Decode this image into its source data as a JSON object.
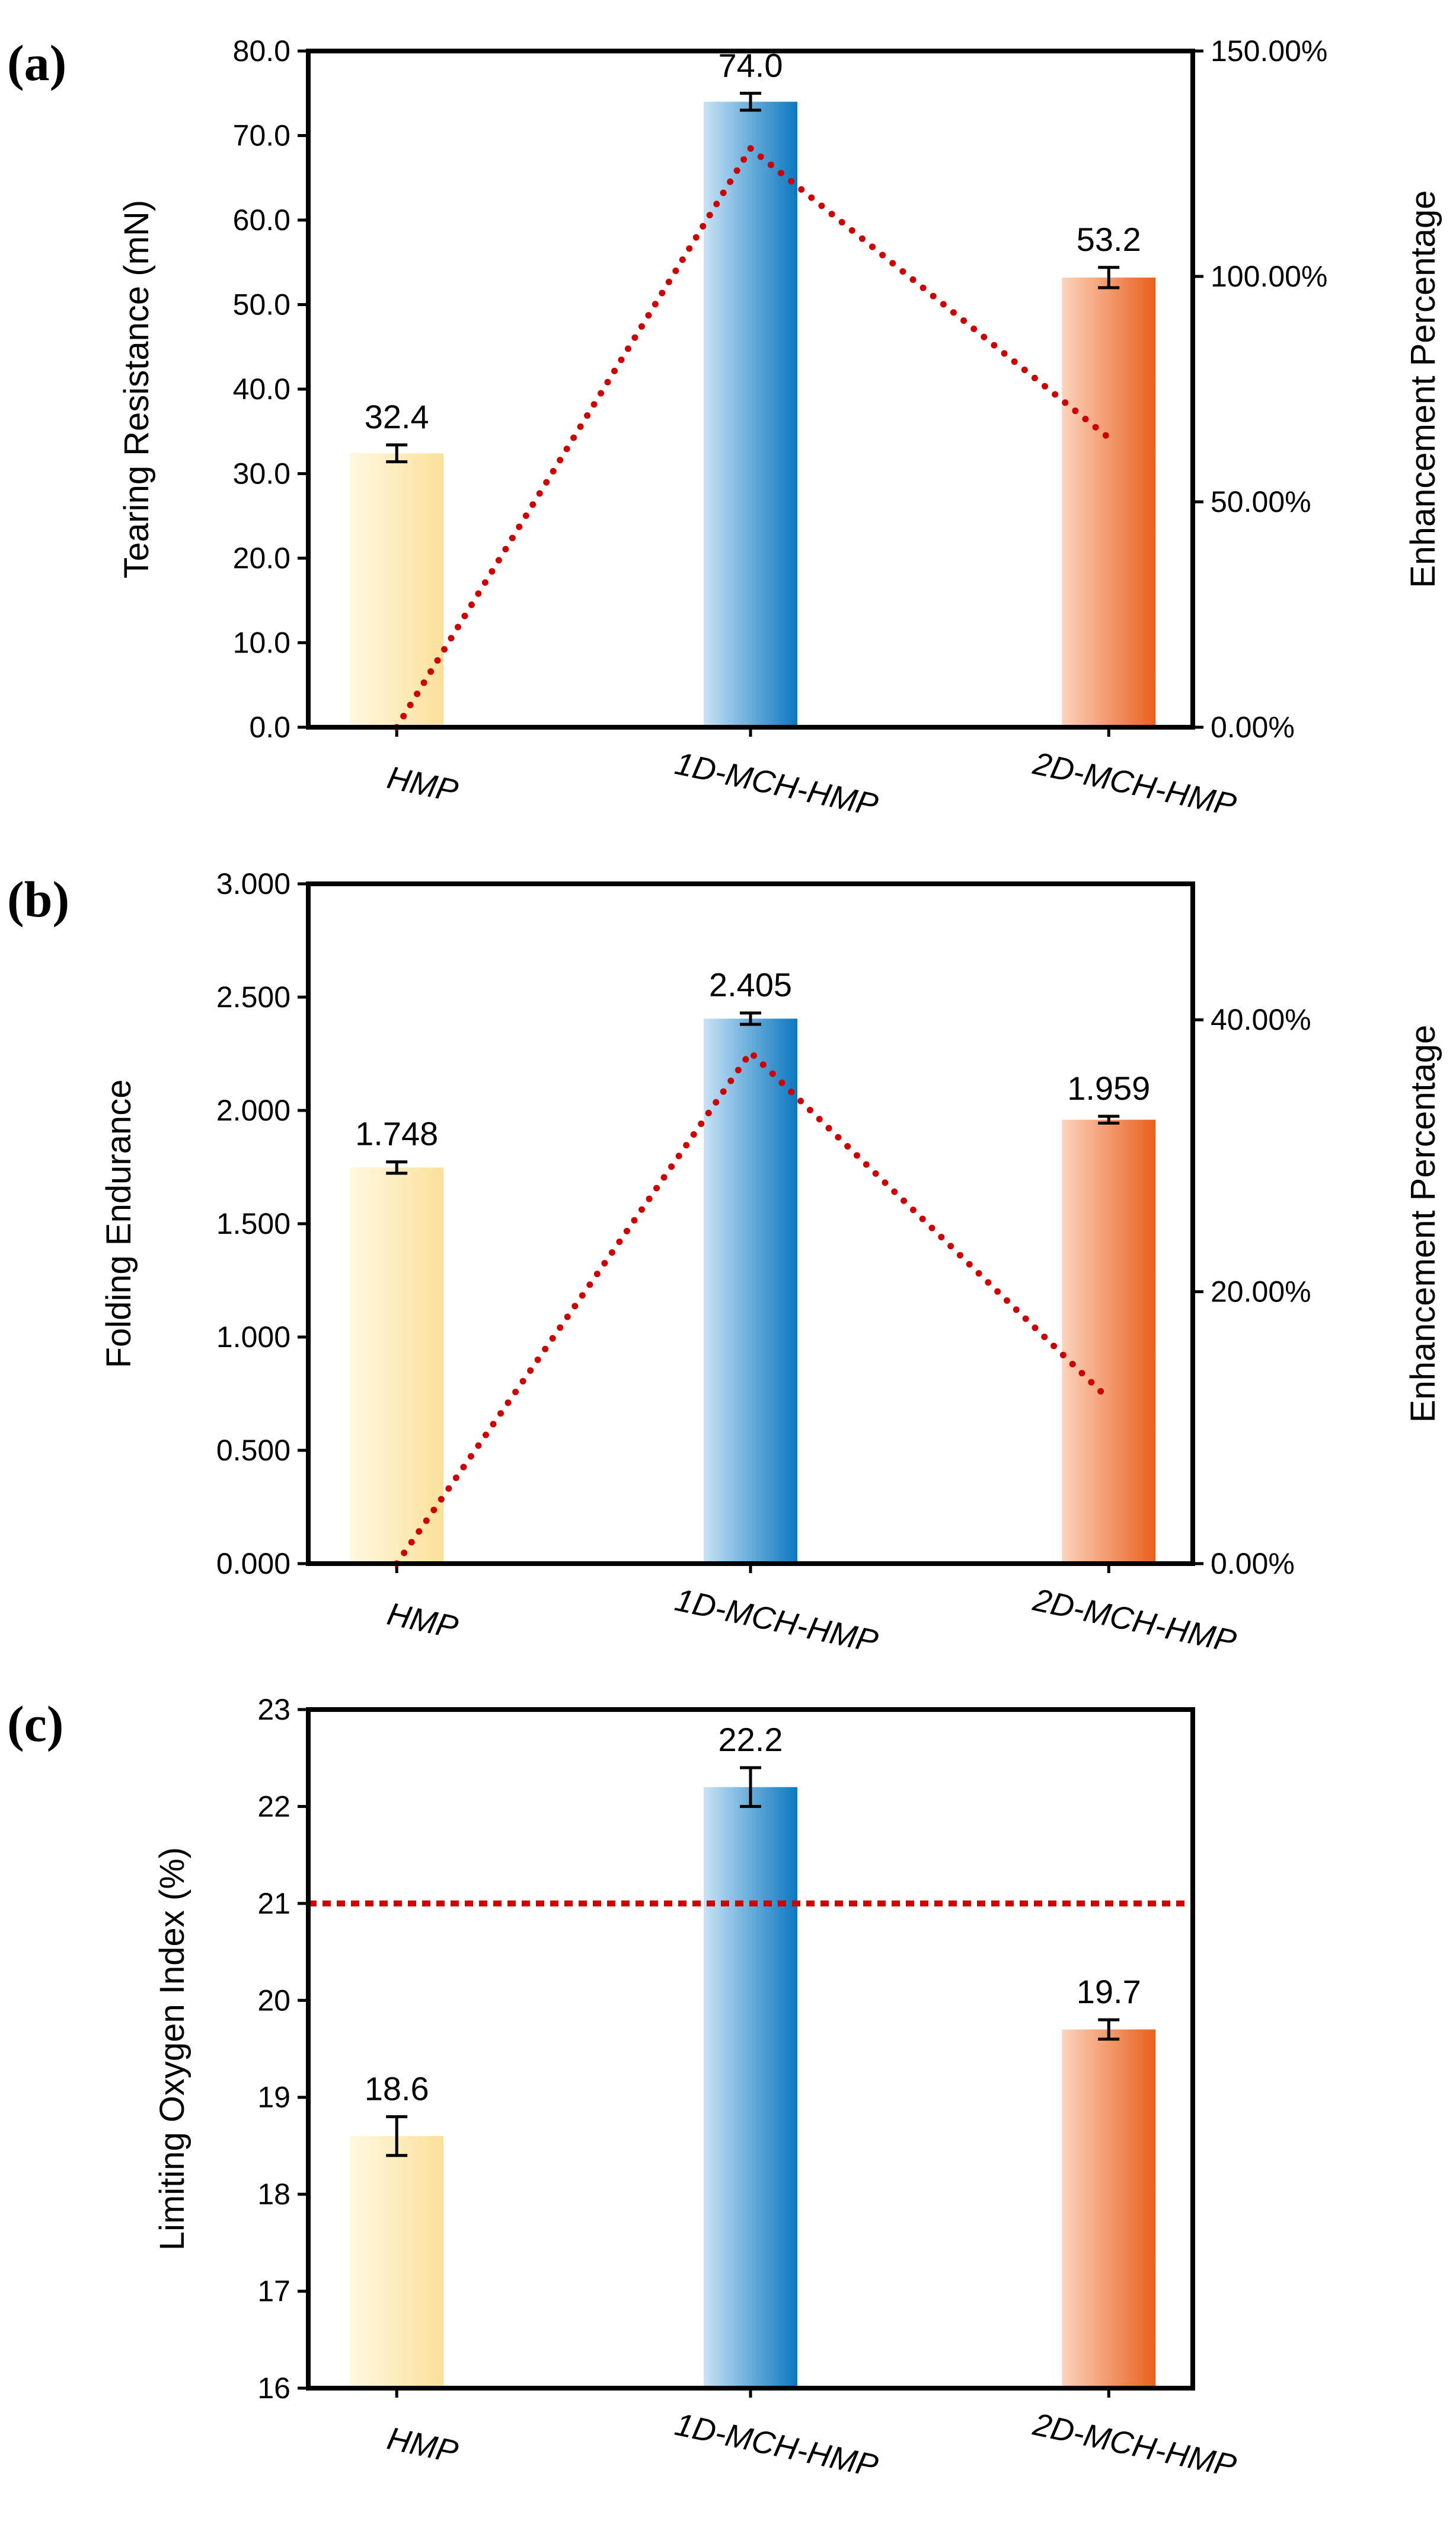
{
  "colors": {
    "hmp_light": "#fff8e0",
    "hmp_dark": "#fbe09a",
    "mch1_light": "#c8e2f6",
    "mch1_dark": "#0a78bf",
    "mch2_light": "#fcd3bd",
    "mch2_dark": "#e9601c",
    "trend_line": "#cc0000",
    "axis": "#000000"
  },
  "chart_data": [
    {
      "panel": "(a)",
      "type": "bar",
      "categories": [
        "HMP",
        "1D-MCH-HMP",
        "2D-MCH-HMP"
      ],
      "values": [
        32.4,
        74.0,
        53.2
      ],
      "value_labels": [
        "32.4",
        "74.0",
        "53.2"
      ],
      "errors": [
        1.0,
        1.0,
        1.2
      ],
      "ylabel": "Tearing Resistance (mN)",
      "ylim": [
        0,
        80
      ],
      "yticks": [
        "0.0",
        "10.0",
        "20.0",
        "30.0",
        "40.0",
        "50.0",
        "60.0",
        "70.0",
        "80.0"
      ],
      "y2label": "Enhancement Percentage",
      "y2lim": [
        0,
        150
      ],
      "y2ticks": [
        "0.00%",
        "50.00%",
        "100.00%",
        "150.00%"
      ],
      "line_series": {
        "values": [
          0,
          128.4,
          64.2
        ]
      }
    },
    {
      "panel": "(b)",
      "type": "bar",
      "categories": [
        "HMP",
        "1D-MCH-HMP",
        "2D-MCH-HMP"
      ],
      "values": [
        1.748,
        2.405,
        1.959
      ],
      "value_labels": [
        "1.748",
        "2.405",
        "1.959"
      ],
      "errors": [
        0.025,
        0.025,
        0.015
      ],
      "ylabel": "Folding Endurance",
      "ylim": [
        0,
        3
      ],
      "yticks": [
        "0.000",
        "0.500",
        "1.000",
        "1.500",
        "2.000",
        "2.500",
        "3.000"
      ],
      "y2label": "Enhancement Percentage",
      "y2lim": [
        0,
        50
      ],
      "y2ticks": [
        "0.00%",
        "20.00%",
        "40.00%"
      ],
      "line_series": {
        "values": [
          0,
          37.6,
          12.1
        ]
      }
    },
    {
      "panel": "(c)",
      "type": "bar",
      "categories": [
        "HMP",
        "1D-MCH-HMP",
        "2D-MCH-HMP"
      ],
      "values": [
        18.6,
        22.2,
        19.7
      ],
      "value_labels": [
        "18.6",
        "22.2",
        "19.7"
      ],
      "errors": [
        0.2,
        0.2,
        0.1
      ],
      "ylabel": "Limiting Oxygen Index (%)",
      "ylim": [
        16,
        23
      ],
      "yticks": [
        "16",
        "17",
        "18",
        "19",
        "20",
        "21",
        "22",
        "23"
      ],
      "reference_line": 21
    }
  ]
}
